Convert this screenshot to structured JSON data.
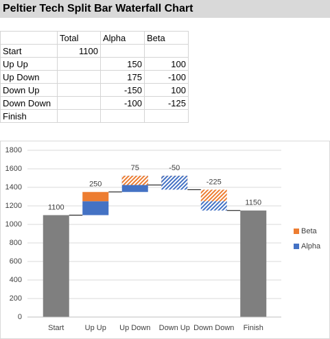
{
  "title": "Peltier Tech Split Bar Waterfall Chart",
  "table": {
    "header": [
      "Total",
      "Alpha",
      "Beta"
    ],
    "rows": [
      [
        "Start",
        1100,
        null,
        null
      ],
      [
        "Up Up",
        null,
        150,
        100
      ],
      [
        "Up Down",
        null,
        175,
        -100
      ],
      [
        "Down Up",
        null,
        -150,
        100
      ],
      [
        "Down Down",
        null,
        -100,
        -125
      ],
      [
        "Finish",
        null,
        null,
        null
      ]
    ]
  },
  "chart_data": {
    "type": "split-waterfall",
    "categories": [
      "Start",
      "Up Up",
      "Up Down",
      "Down Up",
      "Down Down",
      "Finish"
    ],
    "totals": [
      1100,
      null,
      null,
      null,
      null,
      1150
    ],
    "total_color": "#7f7f7f",
    "series": [
      {
        "name": "Alpha",
        "color": "#4472c4",
        "values": [
          null,
          150,
          175,
          -150,
          -100,
          null
        ]
      },
      {
        "name": "Beta",
        "color": "#ed7d31",
        "values": [
          null,
          100,
          -100,
          100,
          -125,
          null
        ]
      }
    ],
    "data_labels": [
      1100,
      250,
      75,
      -50,
      -225,
      1150
    ],
    "ylim": [
      0,
      1800
    ],
    "yticks": [
      0,
      200,
      400,
      600,
      800,
      1000,
      1200,
      1400,
      1600,
      1800
    ],
    "grid": true,
    "legend": "right"
  }
}
